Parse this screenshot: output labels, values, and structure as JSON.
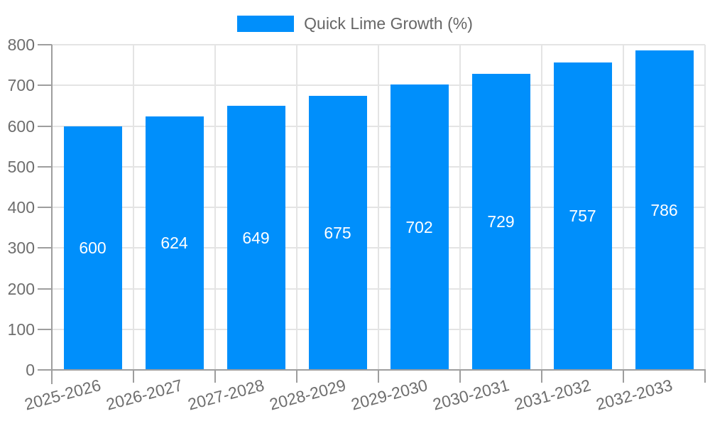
{
  "legend": {
    "label": "Quick Lime Growth (%)"
  },
  "colors": {
    "bar": "#008FFB",
    "grid": "#E4E4E4",
    "axis": "#9E9E9E",
    "tick_text": "#6E6E6E",
    "legend_text": "#666666",
    "value_text": "#FFFFFF",
    "background": "#FFFFFF"
  },
  "chart_data": {
    "type": "bar",
    "title": "",
    "xlabel": "",
    "ylabel": "",
    "categories": [
      "2025-2026",
      "2026-2027",
      "2027-2028",
      "2028-2029",
      "2029-2030",
      "2030-2031",
      "2031-2032",
      "2032-2033"
    ],
    "series": [
      {
        "name": "Quick Lime Growth (%)",
        "values": [
          600,
          624,
          649,
          675,
          702,
          729,
          757,
          786
        ]
      }
    ],
    "data_labels": [
      600,
      624,
      649,
      675,
      702,
      729,
      757,
      786
    ],
    "data_label_position": "inside-center",
    "ylim": [
      0,
      800
    ],
    "yticks": [
      0,
      100,
      200,
      300,
      400,
      500,
      600,
      700,
      800
    ],
    "grid": true,
    "grid_vertical": true,
    "legend_position": "top",
    "xtick_rotation_deg": -15
  }
}
